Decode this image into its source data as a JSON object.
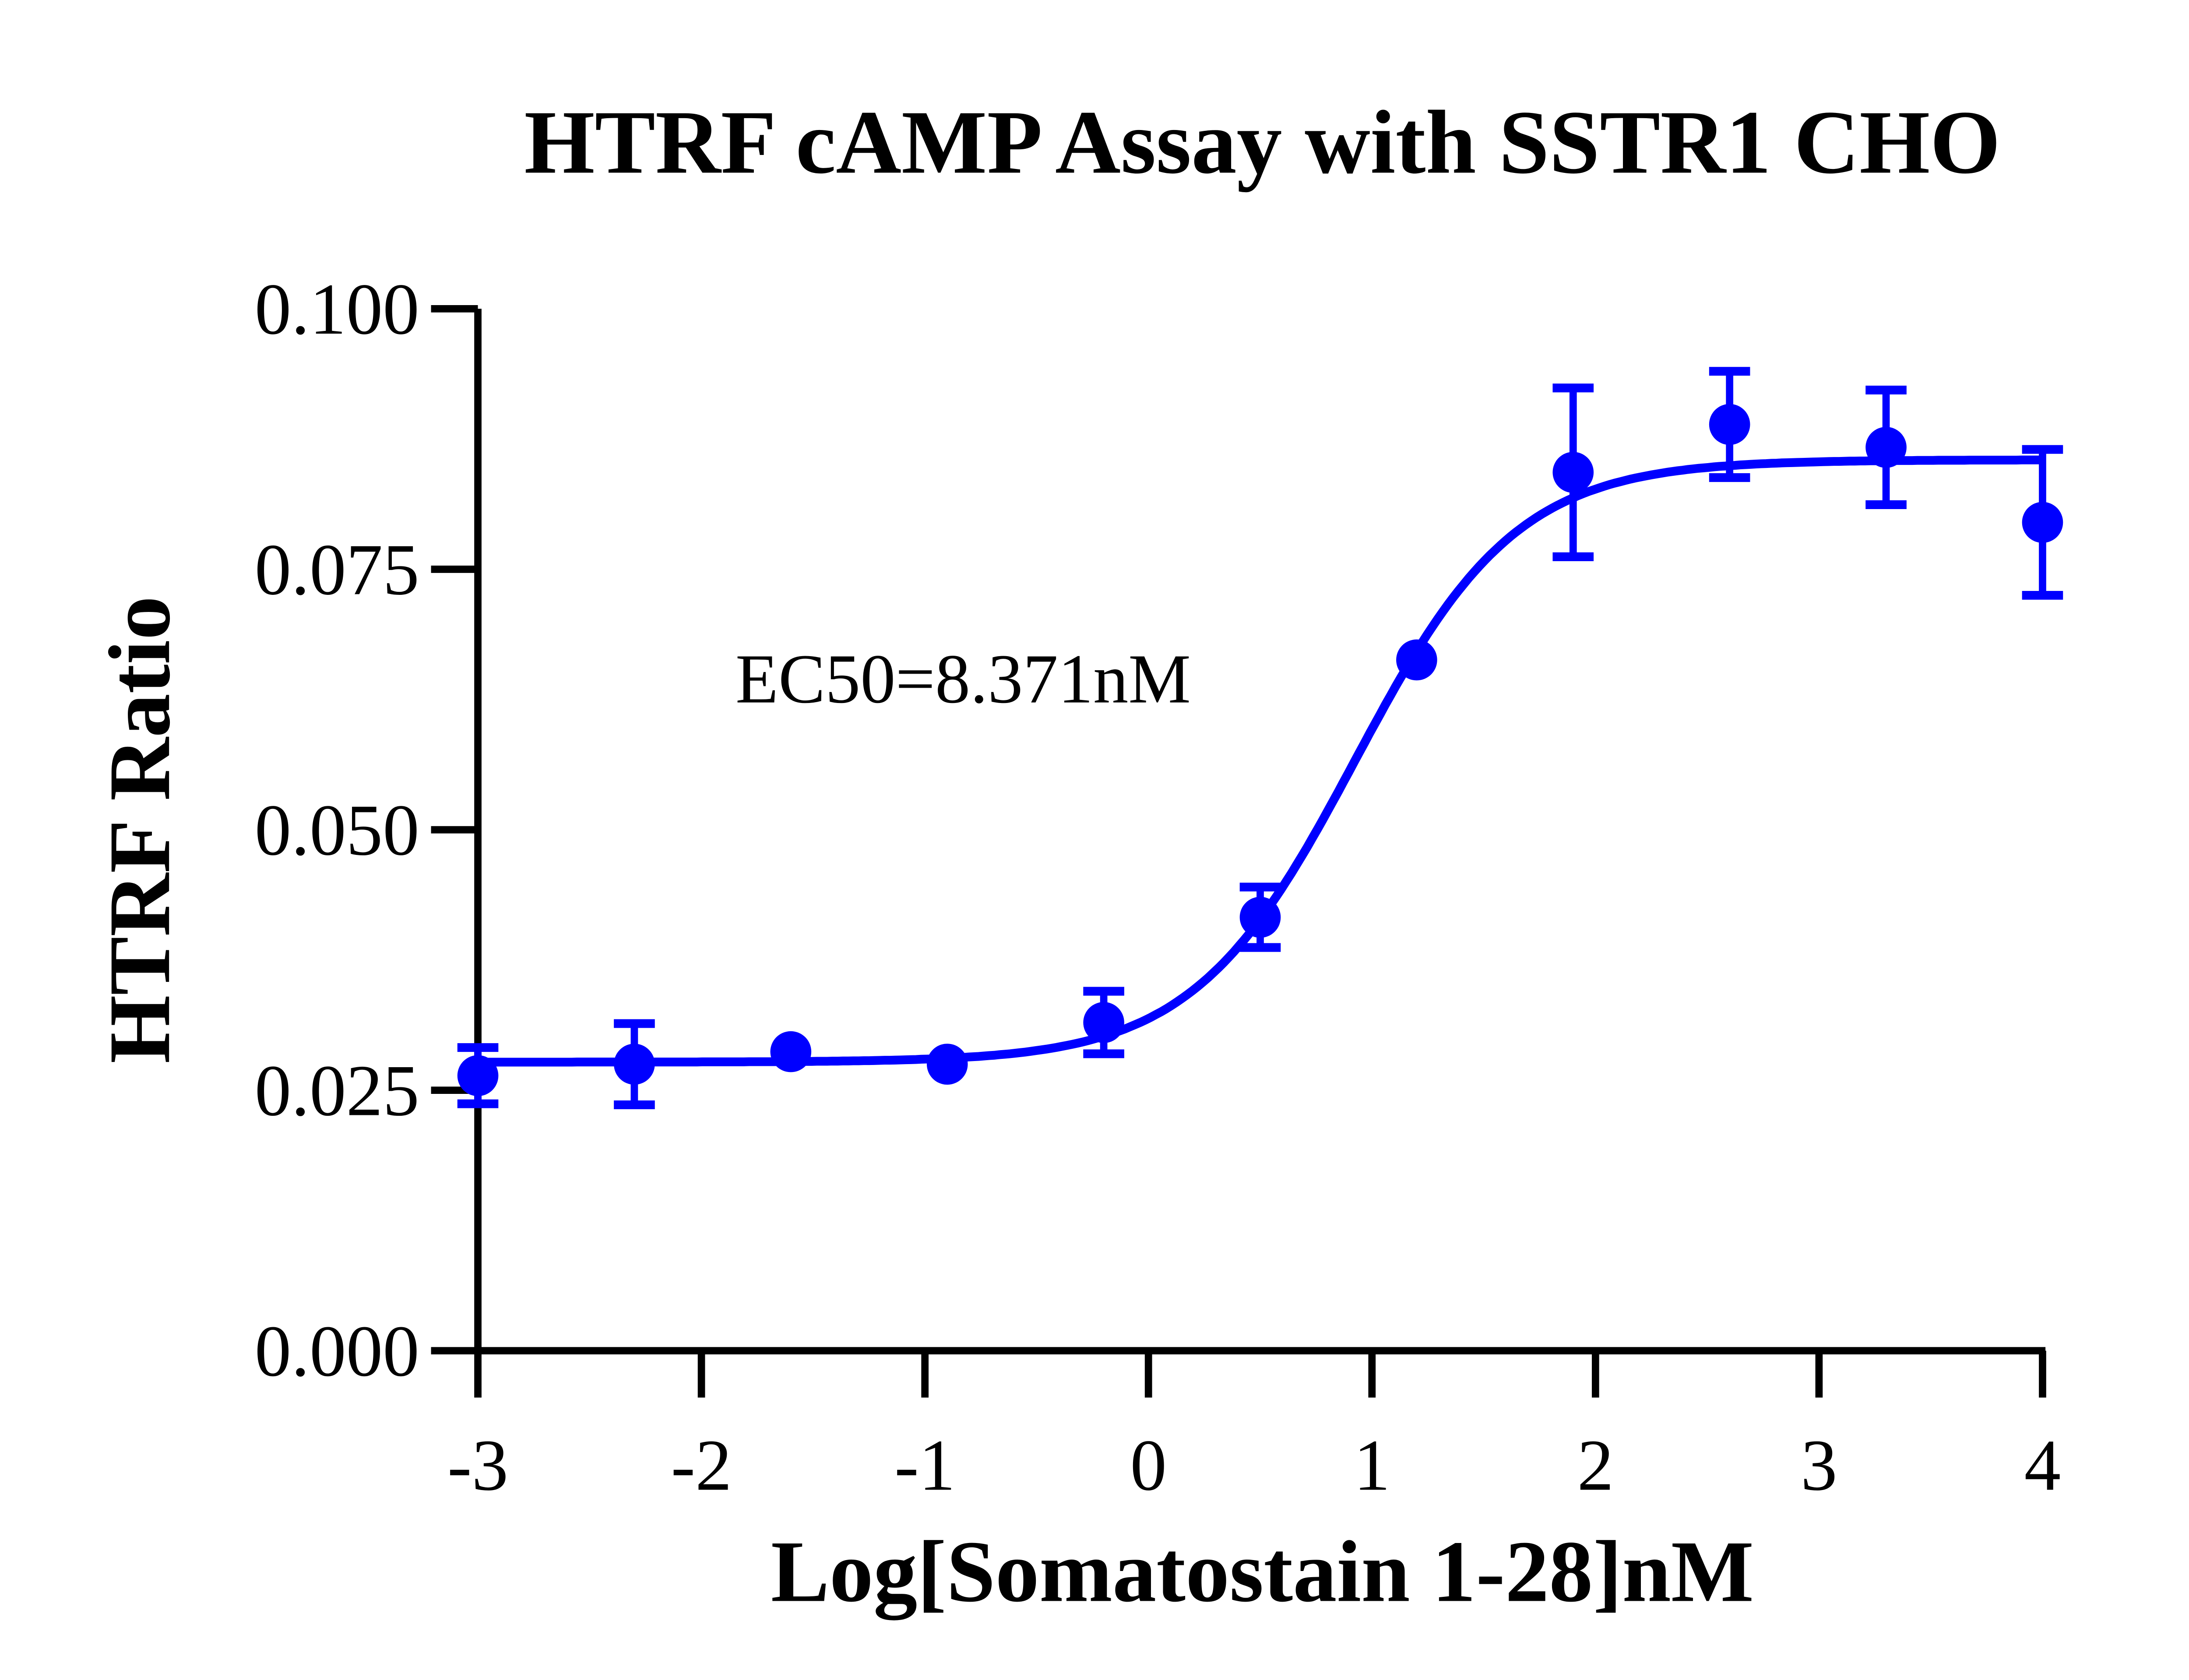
{
  "chart_data": {
    "type": "scatter",
    "title": "HTRF cAMP Assay with SSTR1 CHO",
    "xlabel": "Log[Somatostain 1-28]nM",
    "ylabel": "HTRF Ratio",
    "xlim": [
      -3,
      4
    ],
    "ylim": [
      0,
      0.1
    ],
    "xticks": [
      "-3",
      "-2",
      "-1",
      "0",
      "1",
      "2",
      "3",
      "4"
    ],
    "yticks": [
      "0.000",
      "0.025",
      "0.050",
      "0.075",
      "0.100"
    ],
    "grid": false,
    "color": "#0000ff",
    "annotation": "EC50=8.371nM",
    "points": [
      {
        "x": -3.0,
        "y": 0.0264,
        "err": 0.0027
      },
      {
        "x": -2.3,
        "y": 0.0275,
        "err": 0.0039
      },
      {
        "x": -1.6,
        "y": 0.0287,
        "err": 0
      },
      {
        "x": -0.9,
        "y": 0.0275,
        "err": 0
      },
      {
        "x": -0.2,
        "y": 0.0315,
        "err": 0.003
      },
      {
        "x": 0.5,
        "y": 0.0416,
        "err": 0.0029
      },
      {
        "x": 1.2,
        "y": 0.0663,
        "err": 0
      },
      {
        "x": 1.9,
        "y": 0.0843,
        "err": 0.0081
      },
      {
        "x": 2.6,
        "y": 0.0889,
        "err": 0.0051
      },
      {
        "x": 3.3,
        "y": 0.0867,
        "err": 0.0055
      },
      {
        "x": 4.0,
        "y": 0.0795,
        "err": 0.007
      }
    ],
    "fit": {
      "model": "four-parameter logistic",
      "bottom": 0.0277,
      "top": 0.0855,
      "logEC50": 0.923,
      "hill": 1.2
    }
  }
}
